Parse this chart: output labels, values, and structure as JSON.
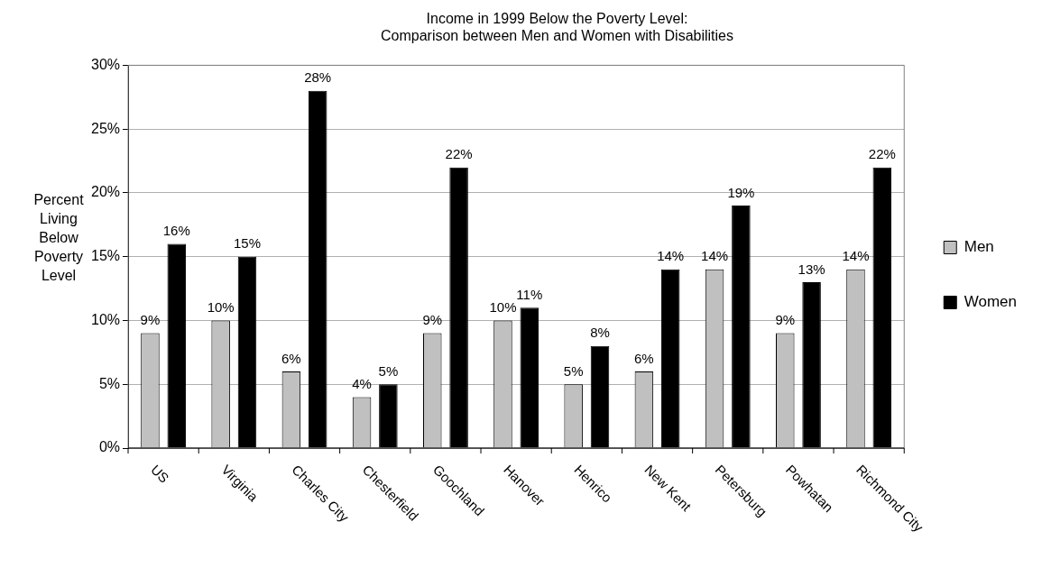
{
  "chart_data": {
    "type": "bar",
    "title": "Income in 1999 Below the Poverty Level:\nComparison between Men and Women with Disabilities",
    "ylabel": "Percent Living Below Poverty Level",
    "categories": [
      "US",
      "Virginia",
      "Charles City",
      "Chesterfield",
      "Goochland",
      "Hanover",
      "Henrico",
      "New Kent",
      "Petersburg",
      "Powhatan",
      "Richmond City"
    ],
    "series": [
      {
        "name": "Men",
        "color": "#c0c0c0",
        "values": [
          9,
          10,
          6,
          4,
          9,
          10,
          5,
          6,
          14,
          9,
          14
        ],
        "value_labels": [
          "9%",
          "10%",
          "6%",
          "4%",
          "9%",
          "10%",
          "5%",
          "6%",
          "14%",
          "9%",
          "14%"
        ]
      },
      {
        "name": "Women",
        "color": "#000000",
        "values": [
          16,
          15,
          28,
          5,
          22,
          11,
          8,
          14,
          19,
          13,
          22
        ],
        "value_labels": [
          "16%",
          "15%",
          "28%",
          "5%",
          "22%",
          "11%",
          "8%",
          "14%",
          "19%",
          "13%",
          "22%"
        ]
      }
    ],
    "ylim": [
      0,
      30
    ],
    "yticks": [
      {
        "value": 0,
        "label": "0%"
      },
      {
        "value": 5,
        "label": "5%"
      },
      {
        "value": 10,
        "label": "10%"
      },
      {
        "value": 15,
        "label": "15%"
      },
      {
        "value": 20,
        "label": "20%"
      },
      {
        "value": 25,
        "label": "25%"
      },
      {
        "value": 30,
        "label": "30%"
      }
    ],
    "grid": "y",
    "legend": "right"
  }
}
